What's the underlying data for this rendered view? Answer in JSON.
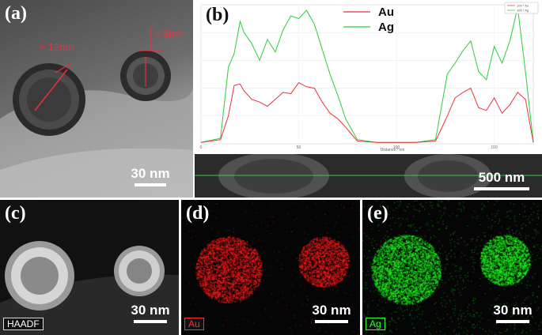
{
  "panels": {
    "a": {
      "label": "(a)",
      "scale": "30 nm",
      "ann1": "≈ 12nm",
      "ann2": "≈ 8nm"
    },
    "b": {
      "label": "(b)",
      "scale": "500 nm",
      "legend_tiny_1": "100 * Au",
      "legend_tiny_2": "100 * Ag"
    },
    "c": {
      "label": "(c)",
      "scale": "30 nm",
      "tag": "HAADF"
    },
    "d": {
      "label": "(d)",
      "scale": "30 nm",
      "tag": "Au"
    },
    "e": {
      "label": "(e)",
      "scale": "30 nm",
      "tag": "Ag"
    }
  },
  "colors": {
    "au": "#e8323a",
    "ag": "#2ecc40",
    "au_map": "#ff1a1a",
    "ag_map": "#1aff1a"
  },
  "chart_data": {
    "type": "line",
    "title": "",
    "xlabel": "Distance / nm",
    "ylabel": "",
    "xlim": [
      0,
      170
    ],
    "ylim": [
      0,
      100
    ],
    "xticks": [
      0,
      50,
      100,
      150
    ],
    "yticks": [
      20,
      40,
      60,
      80,
      100
    ],
    "legend": "top-center",
    "series": [
      {
        "name": "Au",
        "x": [
          0,
          10,
          14,
          17,
          20,
          22,
          26,
          30,
          34,
          38,
          42,
          46,
          50,
          54,
          58,
          62,
          66,
          70,
          74,
          80,
          90,
          100,
          110,
          120,
          126,
          130,
          134,
          138,
          142,
          146,
          150,
          154,
          158,
          162,
          166,
          170
        ],
        "y": [
          1,
          3,
          20,
          42,
          43,
          38,
          32,
          30,
          27,
          32,
          37,
          36,
          44,
          41,
          40,
          30,
          22,
          18,
          12,
          2,
          1,
          1,
          1,
          2,
          20,
          33,
          37,
          40,
          26,
          24,
          33,
          22,
          28,
          37,
          32,
          1
        ]
      },
      {
        "name": "Ag",
        "x": [
          0,
          10,
          14,
          17,
          20,
          22,
          26,
          30,
          34,
          38,
          42,
          46,
          50,
          54,
          58,
          62,
          66,
          70,
          74,
          80,
          90,
          100,
          110,
          120,
          126,
          130,
          134,
          138,
          142,
          146,
          150,
          154,
          158,
          162,
          166,
          170
        ],
        "y": [
          1,
          4,
          55,
          65,
          88,
          80,
          72,
          60,
          75,
          66,
          82,
          92,
          90,
          96,
          86,
          68,
          50,
          35,
          18,
          3,
          1,
          1,
          1,
          3,
          50,
          58,
          67,
          74,
          52,
          46,
          70,
          58,
          74,
          98,
          52,
          1
        ]
      }
    ]
  }
}
